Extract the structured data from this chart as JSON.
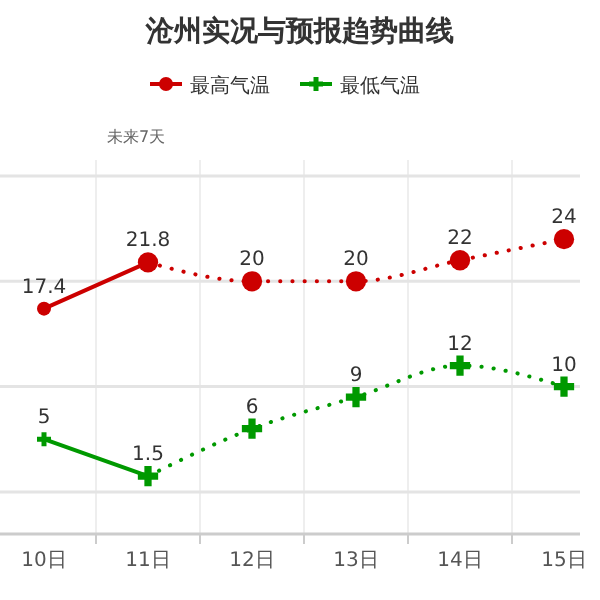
{
  "chart_data": {
    "type": "line",
    "title": "沧州实况与预报趋势曲线",
    "categories": [
      "10日",
      "11日",
      "12日",
      "13日",
      "14日",
      "15日"
    ],
    "series": [
      {
        "name": "最高气温",
        "color": "#cc0000",
        "marker": "circle",
        "line_style": "solid",
        "values": [
          17.4,
          21.8,
          null,
          null,
          null,
          null
        ],
        "value_labels": [
          "17.4",
          "21.8",
          null,
          null,
          null,
          null
        ]
      },
      {
        "color": "#cc0000",
        "marker": "circle",
        "line_style": "dotted",
        "values": [
          null,
          21.8,
          20,
          20,
          22,
          24
        ],
        "value_labels": [
          null,
          null,
          "20",
          "20",
          "22",
          "24"
        ]
      },
      {
        "name": "最低气温",
        "color": "#009900",
        "marker": "cross",
        "line_style": "solid",
        "values": [
          5,
          1.5,
          null,
          null,
          null,
          null
        ],
        "value_labels": [
          "5",
          "1.5",
          null,
          null,
          null,
          null
        ]
      },
      {
        "color": "#009900",
        "marker": "cross",
        "line_style": "dotted",
        "values": [
          null,
          1.5,
          6,
          9,
          12,
          10
        ],
        "value_labels": [
          null,
          null,
          "6",
          "9",
          "12",
          "10"
        ]
      }
    ],
    "annotations": [
      "未来7天"
    ],
    "ylim": [
      -4,
      30
    ],
    "yticks": [
      {
        "value": 0,
        "label": null
      },
      {
        "value": 10,
        "label": null
      },
      {
        "value": 20,
        "label": null
      },
      {
        "value": 30,
        "label": null
      }
    ],
    "tick_labels": "x",
    "grid": true,
    "legend": "top"
  }
}
